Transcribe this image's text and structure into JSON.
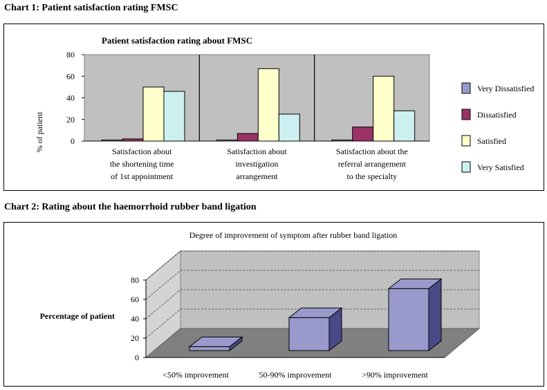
{
  "chart1_heading": "Chart 1: Patient satisfaction rating FMSC",
  "chart2_heading": "Chart 2: Rating about the haemorrhoid rubber band ligation",
  "chart_data": [
    {
      "type": "bar",
      "title": "Patient satisfaction rating about FMSC",
      "xlabel": "",
      "ylabel": "% of patient",
      "ylim": [
        0,
        80
      ],
      "yticks": [
        "0",
        "20",
        "40",
        "60",
        "80"
      ],
      "categories": [
        [
          "Satisfaction about",
          "the shortening time",
          "of 1st appointment"
        ],
        [
          "Satisfaction about",
          "investigation",
          "arrangement"
        ],
        [
          "Satisfaction about the",
          "referral arrangement",
          "to the specialty"
        ]
      ],
      "series": [
        {
          "name": "Very Dissatisfied",
          "color": "#9999cc",
          "values": [
            1,
            1,
            1
          ]
        },
        {
          "name": "Dissatisfied",
          "color": "#993366",
          "values": [
            2,
            7,
            13
          ]
        },
        {
          "name": "Satisfied",
          "color": "#ffffcc",
          "values": [
            50,
            67,
            60
          ]
        },
        {
          "name": "Very Satisfied",
          "color": "#ccf0f0",
          "values": [
            46,
            25,
            28
          ]
        }
      ],
      "legend": "right",
      "plot_background": "#c0c0c0"
    },
    {
      "type": "bar",
      "title": "Degree of improvement of symptom after rubber band ligation",
      "xlabel": "",
      "ylabel": "Percentage of patient",
      "ylim": [
        0,
        80
      ],
      "yticks": [
        "0",
        "20",
        "40",
        "60",
        "80"
      ],
      "categories": [
        "<50% improvement",
        "50-90% improvement",
        ">90% improvement"
      ],
      "series": [
        {
          "color": "#9999cc",
          "values": [
            4,
            34,
            64
          ]
        }
      ],
      "bar_style": "3d",
      "grid": true
    }
  ]
}
